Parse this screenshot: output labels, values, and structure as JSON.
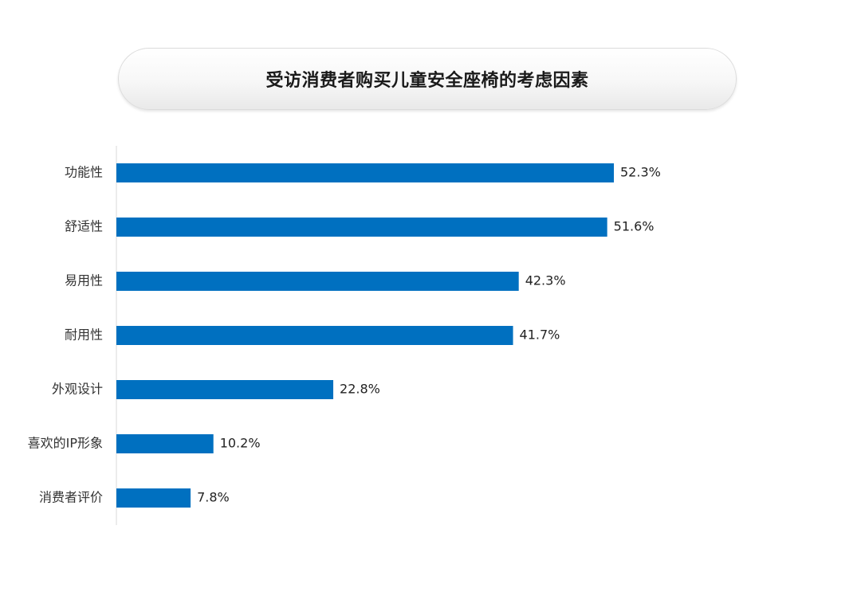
{
  "chart_data": {
    "type": "bar",
    "orientation": "horizontal",
    "title": "受访消费者购买儿童安全座椅的考虑因素",
    "categories": [
      "功能性",
      "舒适性",
      "易用性",
      "耐用性",
      "外观设计",
      "喜欢的IP形象",
      "消费者评价"
    ],
    "values": [
      52.3,
      51.6,
      42.3,
      41.7,
      22.8,
      10.2,
      7.8
    ],
    "value_labels": [
      "52.3%",
      "51.6%",
      "42.3%",
      "41.7%",
      "22.8%",
      "10.2%",
      "7.8%"
    ],
    "unit": "%",
    "xlabel": "",
    "ylabel": "",
    "grid": false,
    "legend": "none",
    "bar_color": "#0070C0",
    "axis_color": "#d9d9d9"
  }
}
